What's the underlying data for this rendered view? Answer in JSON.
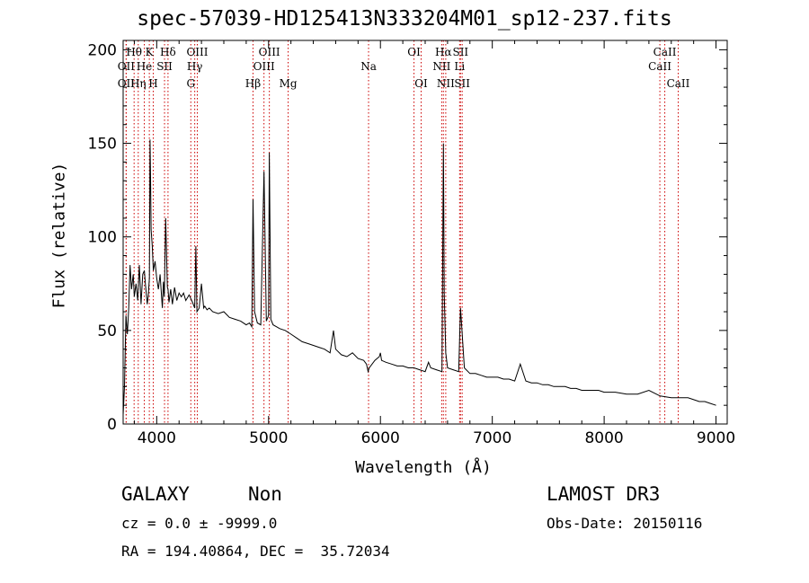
{
  "title": "spec-57039-HD125413N333204M01_sp12-237.fits",
  "chart_data": {
    "type": "line",
    "title": "spec-57039-HD125413N333204M01_sp12-237.fits",
    "xlabel": "Wavelength (Å)",
    "ylabel": "Flux (relative)",
    "xlim": [
      3700,
      9100
    ],
    "ylim": [
      0,
      205
    ],
    "xticks": [
      4000,
      5000,
      6000,
      7000,
      8000,
      9000
    ],
    "yticks": [
      0,
      50,
      100,
      150,
      200
    ],
    "grid": false,
    "series": [
      {
        "name": "spectrum",
        "x": [
          3700,
          3712,
          3725,
          3738,
          3750,
          3762,
          3775,
          3790,
          3800,
          3815,
          3830,
          3845,
          3860,
          3875,
          3890,
          3900,
          3915,
          3925,
          3935,
          3940,
          3945,
          3950,
          3960,
          3970,
          3985,
          4000,
          4015,
          4030,
          4050,
          4060,
          4068,
          4080,
          4095,
          4101,
          4110,
          4125,
          4140,
          4160,
          4180,
          4200,
          4220,
          4240,
          4260,
          4290,
          4320,
          4340,
          4350,
          4360,
          4380,
          4400,
          4420,
          4430,
          4450,
          4470,
          4500,
          4550,
          4600,
          4650,
          4700,
          4750,
          4800,
          4830,
          4850,
          4861,
          4875,
          4900,
          4930,
          4959,
          4980,
          5000,
          5007,
          5020,
          5040,
          5070,
          5100,
          5150,
          5200,
          5250,
          5300,
          5350,
          5400,
          5450,
          5500,
          5550,
          5580,
          5600,
          5650,
          5700,
          5750,
          5800,
          5850,
          5875,
          5890,
          5900,
          5950,
          5990,
          6000,
          6010,
          6050,
          6100,
          6150,
          6200,
          6250,
          6300,
          6350,
          6400,
          6430,
          6450,
          6500,
          6550,
          6563,
          6570,
          6584,
          6600,
          6650,
          6700,
          6716,
          6731,
          6750,
          6800,
          6850,
          6900,
          6950,
          7000,
          7050,
          7100,
          7150,
          7200,
          7250,
          7300,
          7350,
          7400,
          7450,
          7500,
          7550,
          7600,
          7650,
          7700,
          7750,
          7800,
          7850,
          7900,
          7950,
          8000,
          8100,
          8200,
          8300,
          8400,
          8500,
          8600,
          8700,
          8750,
          8800,
          8850,
          8900,
          8950,
          9000
        ],
        "values": [
          5,
          20,
          58,
          48,
          62,
          85,
          72,
          80,
          68,
          75,
          66,
          85,
          64,
          80,
          82,
          74,
          64,
          69,
          78,
          152,
          132,
          104,
          95,
          82,
          87,
          78,
          72,
          80,
          62,
          76,
          68,
          110,
          73,
          72,
          65,
          72,
          64,
          73,
          66,
          70,
          68,
          70,
          66,
          69,
          65,
          62,
          95,
          60,
          62,
          75,
          62,
          63,
          61,
          62,
          60,
          59,
          60,
          57,
          56,
          55,
          53,
          54,
          52,
          120,
          60,
          54,
          53,
          135,
          55,
          58,
          145,
          56,
          53,
          52,
          51,
          50,
          48,
          46,
          44,
          43,
          42,
          41,
          40,
          38,
          50,
          40,
          37,
          36,
          38,
          35,
          34,
          32,
          28,
          30,
          34,
          36,
          38,
          34,
          33,
          32,
          31,
          31,
          30,
          30,
          29,
          28,
          33,
          30,
          29,
          28,
          150,
          70,
          38,
          30,
          29,
          28,
          62,
          48,
          30,
          27,
          27,
          26,
          25,
          25,
          25,
          24,
          24,
          23,
          32,
          23,
          22,
          22,
          21,
          21,
          20,
          20,
          20,
          19,
          19,
          18,
          18,
          18,
          18,
          17,
          17,
          16,
          16,
          18,
          15,
          14,
          14,
          14,
          13,
          12,
          12,
          11,
          10
        ]
      }
    ],
    "line_markers": [
      {
        "label": "OII",
        "wavelength": 3727,
        "row": 2
      },
      {
        "label": "OII",
        "wavelength": 3727,
        "row": 3
      },
      {
        "label": "Hθ",
        "wavelength": 3798,
        "row": 1
      },
      {
        "label": "Hη",
        "wavelength": 3835,
        "row": 3
      },
      {
        "label": "He",
        "wavelength": 3889,
        "row": 2
      },
      {
        "label": "K",
        "wavelength": 3934,
        "row": 1
      },
      {
        "label": "H",
        "wavelength": 3969,
        "row": 3
      },
      {
        "label": "SII",
        "wavelength": 4070,
        "row": 2
      },
      {
        "label": "Hδ",
        "wavelength": 4101,
        "row": 1
      },
      {
        "label": "Hγ",
        "wavelength": 4340,
        "row": 2
      },
      {
        "label": "G",
        "wavelength": 4305,
        "row": 3
      },
      {
        "label": "OIII",
        "wavelength": 4363,
        "row": 1
      },
      {
        "label": "Hβ",
        "wavelength": 4861,
        "row": 3
      },
      {
        "label": "OIII",
        "wavelength": 4959,
        "row": 2
      },
      {
        "label": "OIII",
        "wavelength": 5007,
        "row": 1
      },
      {
        "label": "Mg",
        "wavelength": 5175,
        "row": 3
      },
      {
        "label": "Na",
        "wavelength": 5894,
        "row": 2
      },
      {
        "label": "OI",
        "wavelength": 6300,
        "row": 1
      },
      {
        "label": "OI",
        "wavelength": 6364,
        "row": 3
      },
      {
        "label": "Hα",
        "wavelength": 6563,
        "row": 1
      },
      {
        "label": "NII",
        "wavelength": 6548,
        "row": 2
      },
      {
        "label": "NII",
        "wavelength": 6584,
        "row": 3
      },
      {
        "label": "SII",
        "wavelength": 6716,
        "row": 1
      },
      {
        "label": "Li",
        "wavelength": 6708,
        "row": 2
      },
      {
        "label": "SII",
        "wavelength": 6731,
        "row": 3
      },
      {
        "label": "CaII",
        "wavelength": 8498,
        "row": 2
      },
      {
        "label": "CaII",
        "wavelength": 8542,
        "row": 1
      },
      {
        "label": "CaII",
        "wavelength": 8662,
        "row": 3
      }
    ]
  },
  "info": {
    "class_label": "GALAXY",
    "subclass": "Non",
    "cz": "cz = 0.0 ± -9999.0",
    "coords": "RA = 194.40864, DEC =  35.72034",
    "survey": "LAMOST DR3",
    "obs_date": "Obs-Date: 20150116"
  },
  "colors": {
    "line": "#000000",
    "marker": "#cc0000",
    "axis": "#000000"
  }
}
